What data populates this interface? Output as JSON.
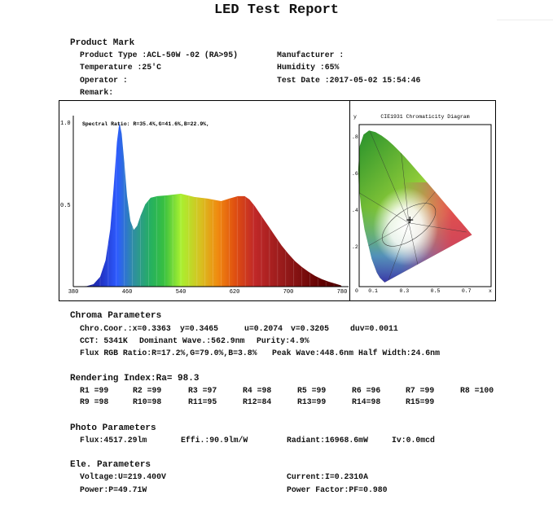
{
  "title": "LED Test Report",
  "product_mark": {
    "heading": "Product Mark",
    "product_type": "Product Type :ACL-50W -02 (RA>95)",
    "manufacturer": "Manufacturer :",
    "temperature": "Temperature :25'C",
    "humidity": "Humidity :65%",
    "operator": "Operator :",
    "test_date": "Test Date :2017-05-02 15:54:46",
    "remark": "Remark:"
  },
  "chart_data": [
    {
      "type": "area",
      "title": "Spectral Ratio:  R=35.4%,G=41.6%,B=22.9%,",
      "xlabel": "",
      "ylabel": "",
      "xlim": [
        380,
        780
      ],
      "ylim": [
        0,
        1.0
      ],
      "xticks": [
        "380",
        "460",
        "540",
        "620",
        "700",
        "780"
      ],
      "yticks": [
        "1.0",
        "0.5"
      ],
      "x": [
        380,
        400,
        410,
        420,
        428,
        435,
        440,
        445,
        448.6,
        452,
        456,
        460,
        465,
        470,
        475,
        480,
        487,
        495,
        505,
        520,
        540,
        560,
        580,
        600,
        612,
        625,
        635,
        642,
        650,
        660,
        670,
        680,
        690,
        700,
        710,
        720,
        730,
        740,
        750,
        760,
        770,
        778,
        780
      ],
      "y": [
        0,
        0.003,
        0.015,
        0.06,
        0.16,
        0.35,
        0.6,
        0.88,
        1.0,
        0.93,
        0.75,
        0.55,
        0.4,
        0.345,
        0.37,
        0.43,
        0.5,
        0.54,
        0.55,
        0.555,
        0.565,
        0.545,
        0.535,
        0.52,
        0.535,
        0.55,
        0.55,
        0.53,
        0.49,
        0.43,
        0.37,
        0.31,
        0.25,
        0.2,
        0.155,
        0.12,
        0.09,
        0.065,
        0.045,
        0.03,
        0.018,
        0.008,
        0
      ]
    },
    {
      "type": "scatter",
      "title": "CIE1931 Chromaticity Diagram",
      "xlabel": "x",
      "ylabel": "y",
      "xlim": [
        0,
        0.8
      ],
      "ylim": [
        0,
        0.9
      ],
      "xticks": [
        "0",
        "0.1",
        "0.3",
        "0.5",
        "0.7"
      ],
      "yticks": [
        ".8",
        ".6",
        ".4",
        ".2"
      ],
      "point": {
        "x": 0.3363,
        "y": 0.3465
      }
    }
  ],
  "chroma": {
    "heading": "Chroma Parameters",
    "coor_x": "Chro.Coor.:x=0.3363",
    "coor_y": "y=0.3465",
    "u": "u=0.2074",
    "v": "v=0.3205",
    "duv": "duv=0.0011",
    "cct": "CCT: 5341K",
    "dominant": "Dominant Wave.:562.9nm",
    "purity": "Purity:4.9%",
    "flux_rgb": "Flux RGB Ratio:R=17.2%,G=79.0%,B=3.8%",
    "peak": "Peak Wave:448.6nm",
    "half_width": "Half Width:24.6nm"
  },
  "rendering": {
    "heading": "Rendering Index:Ra= 98.3",
    "row1": [
      "R1 =99",
      "R2 =99",
      "R3 =97",
      "R4 =98",
      "R5 =99",
      "R6 =96",
      "R7 =99",
      "R8 =100"
    ],
    "row2": [
      "R9 =98",
      "R10=98",
      "R11=95",
      "R12=84",
      "R13=99",
      "R14=98",
      "R15=99"
    ]
  },
  "photo": {
    "heading": "Photo Parameters",
    "flux": "Flux:4517.29lm",
    "effi": "Effi.:90.9lm/W",
    "radiant": "Radiant:16968.6mW",
    "iv": "Iv:0.0mcd"
  },
  "ele": {
    "heading": "Ele. Parameters",
    "voltage": "Voltage:U=219.400V",
    "current": "Current:I=0.2310A",
    "power": "Power:P=49.71W",
    "pf": "Power Factor:PF=0.980"
  }
}
